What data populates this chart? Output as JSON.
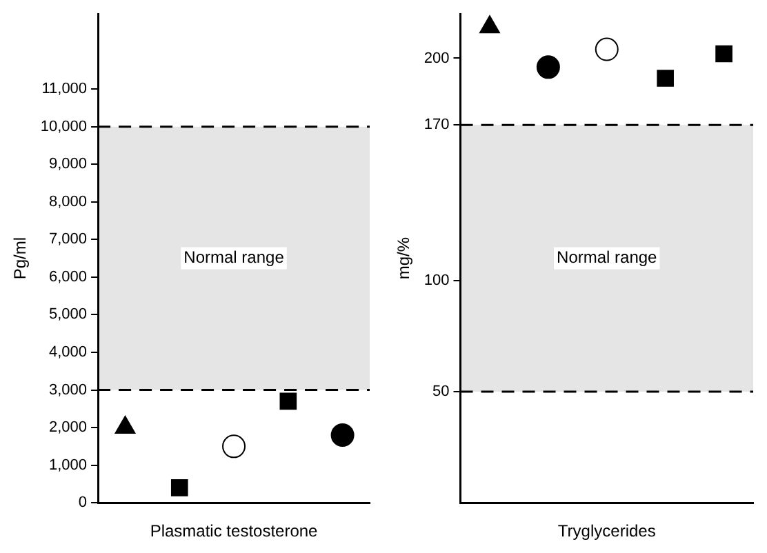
{
  "chart_data": [
    {
      "type": "scatter",
      "xlabel": "Plasmatic testosterone",
      "ylabel": "Pg/ml",
      "categories": [
        null,
        null,
        null,
        null,
        null
      ],
      "series": [
        {
          "color": "#000000",
          "marker": "triangle",
          "values": [
            2000,
            null,
            null,
            null,
            null
          ]
        },
        {
          "color": "#000000",
          "marker": "square",
          "values": [
            null,
            400,
            null,
            null,
            null
          ]
        },
        {
          "color": "#ffffff",
          "marker": "circle",
          "values": [
            null,
            null,
            1500,
            null,
            null
          ]
        },
        {
          "color": "#000000",
          "marker": "square",
          "values": [
            null,
            null,
            null,
            2700,
            null
          ]
        },
        {
          "color": "#000000",
          "marker": "circle",
          "values": [
            null,
            null,
            null,
            null,
            1800
          ]
        }
      ],
      "ylim": [
        0,
        13000
      ],
      "yticks": [
        0,
        {
          "value": 1000,
          "label": "1,000"
        },
        {
          "value": 2000,
          "label": "2,000"
        },
        {
          "value": 3000,
          "label": "3,000"
        },
        {
          "value": 4000,
          "label": "4,000"
        },
        {
          "value": 5000,
          "label": "5,000"
        },
        {
          "value": 6000,
          "label": "6,000"
        },
        {
          "value": 7000,
          "label": "7,000"
        },
        {
          "value": 8000,
          "label": "8,000"
        },
        {
          "value": 9000,
          "label": "9,000"
        },
        {
          "value": 10000,
          "label": "10,000"
        },
        {
          "value": 11000,
          "label": "11,000"
        }
      ],
      "bands": [
        {
          "axis": "y",
          "from": 3000,
          "to": 10000,
          "label": "Normal range",
          "color": "#000000"
        }
      ],
      "ref_lines": [
        {
          "axis": "y",
          "value": 3000,
          "line_style": "dashed",
          "color": "#000000"
        },
        {
          "axis": "y",
          "value": 10000,
          "line_style": "dashed",
          "color": "#000000"
        }
      ],
      "grid": false,
      "legend": false,
      "tick_labels": "y"
    },
    {
      "type": "scatter",
      "xlabel": "Tryglycerides",
      "ylabel": "mg/%",
      "categories": [
        null,
        null,
        null,
        null,
        null
      ],
      "series": [
        {
          "color": "#000000",
          "marker": "triangle",
          "values": [
            214,
            null,
            null,
            null,
            null
          ]
        },
        {
          "color": "#000000",
          "marker": "circle",
          "values": [
            null,
            196,
            null,
            null,
            null
          ]
        },
        {
          "color": "#ffffff",
          "marker": "circle",
          "values": [
            null,
            null,
            204,
            null,
            null
          ]
        },
        {
          "color": "#000000",
          "marker": "square",
          "values": [
            null,
            null,
            null,
            191,
            null
          ]
        },
        {
          "color": "#000000",
          "marker": "square",
          "values": [
            null,
            null,
            null,
            null,
            202
          ]
        }
      ],
      "ylim": [
        0,
        220
      ],
      "yticks": [
        50,
        100,
        170,
        200
      ],
      "bands": [
        {
          "axis": "y",
          "from": 50,
          "to": 170,
          "label": "Normal range",
          "color": "#000000"
        }
      ],
      "ref_lines": [
        {
          "axis": "y",
          "value": 50,
          "line_style": "dashed",
          "color": "#000000"
        },
        {
          "axis": "y",
          "value": 170,
          "line_style": "dashed",
          "color": "#000000"
        }
      ],
      "grid": false,
      "legend": false,
      "tick_labels": "y"
    }
  ]
}
